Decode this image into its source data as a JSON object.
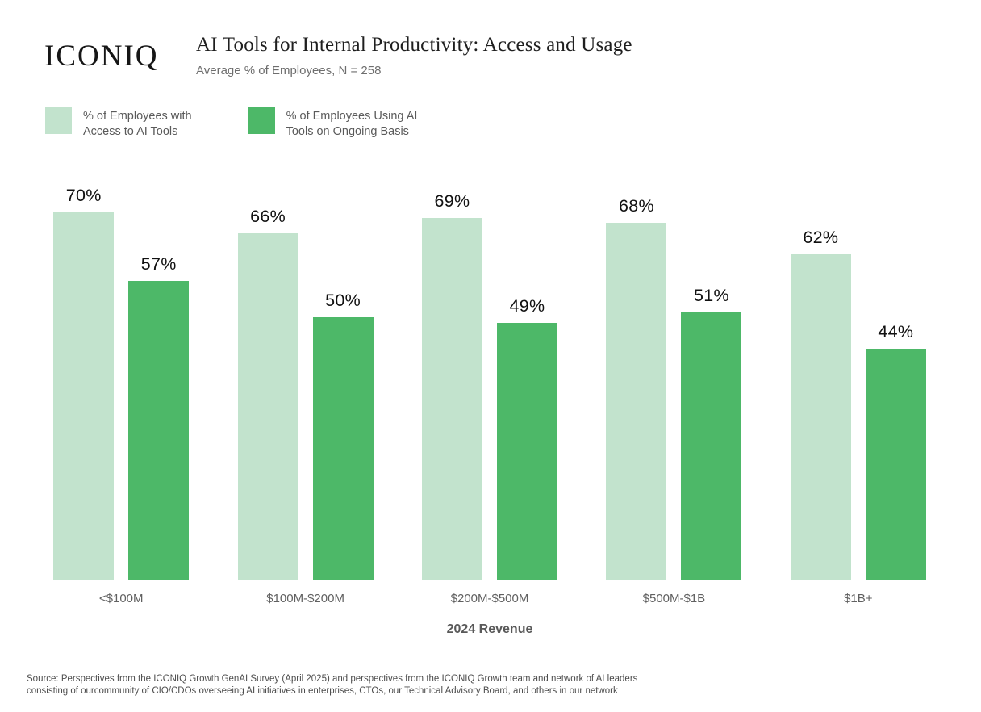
{
  "header": {
    "logo": "ICONIQ",
    "title": "AI Tools for Internal Productivity: Access and Usage",
    "subtitle": "Average % of Employees, N = 258"
  },
  "legend": {
    "items": [
      {
        "label": "% of Employees with\nAccess to AI Tools",
        "color": "#c2e3cd"
      },
      {
        "label": "% of Employees Using AI\nTools on Ongoing Basis",
        "color": "#4db868"
      }
    ]
  },
  "chart_data": {
    "type": "bar",
    "title": "AI Tools for Internal Productivity: Access and Usage",
    "subtitle": "Average % of Employees, N = 258",
    "categories": [
      "<$100M",
      "$100M-$200M",
      "$200M-$500M",
      "$500M-$1B",
      "$1B+"
    ],
    "series": [
      {
        "name": "% of Employees with Access to AI Tools",
        "color": "#c2e3cd",
        "values": [
          70,
          66,
          69,
          68,
          62
        ]
      },
      {
        "name": "% of Employees Using AI Tools on Ongoing Basis",
        "color": "#4db868",
        "values": [
          57,
          50,
          49,
          51,
          44
        ]
      }
    ],
    "value_suffix": "%",
    "data_labels": true,
    "xlabel": "2024 Revenue",
    "ylabel": "",
    "ylim": [
      0,
      78
    ],
    "grid": false,
    "legend_position": "top-left"
  },
  "footer": {
    "source_line1": "Source: Perspectives from the ICONIQ Growth GenAI Survey (April 2025) and perspectives from the ICONIQ Growth team and network of AI leaders",
    "source_line2": "consisting of ourcommunity of CIO/CDOs overseeing AI initiatives in enterprises, CTOs, our Technical Advisory Board, and others in our network"
  }
}
